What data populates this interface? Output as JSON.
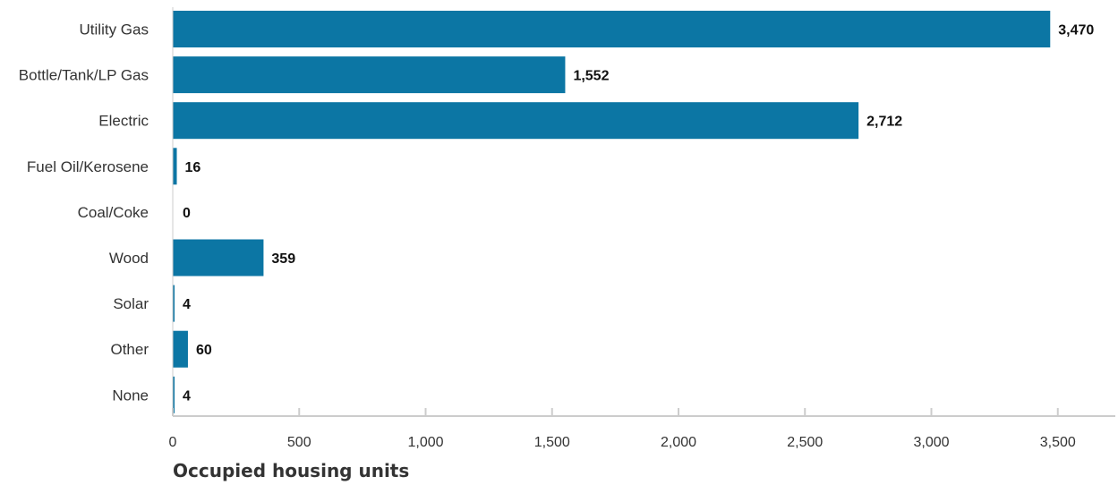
{
  "chart_data": {
    "type": "bar",
    "orientation": "horizontal",
    "categories": [
      "Utility Gas",
      "Bottle/Tank/LP Gas",
      "Electric",
      "Fuel Oil/Kerosene",
      "Coal/Coke",
      "Wood",
      "Solar",
      "Other",
      "None"
    ],
    "values": [
      3470,
      1552,
      2712,
      16,
      0,
      359,
      4,
      60,
      4
    ],
    "value_labels": [
      "3,470",
      "1,552",
      "2,712",
      "16",
      "0",
      "359",
      "4",
      "60",
      "4"
    ],
    "xlabel": "Occupied housing units",
    "ylabel": "",
    "xlim": [
      0,
      3750
    ],
    "xticks": [
      0,
      500,
      1000,
      1500,
      2000,
      2500,
      3000,
      3500
    ],
    "xtick_labels": [
      "0",
      "500",
      "1,000",
      "1,500",
      "2,000",
      "2,500",
      "3,000",
      "3,500"
    ],
    "grid": false,
    "legend": "none",
    "bar_color": "#0c76a4",
    "axis_color": "#cccccc"
  }
}
